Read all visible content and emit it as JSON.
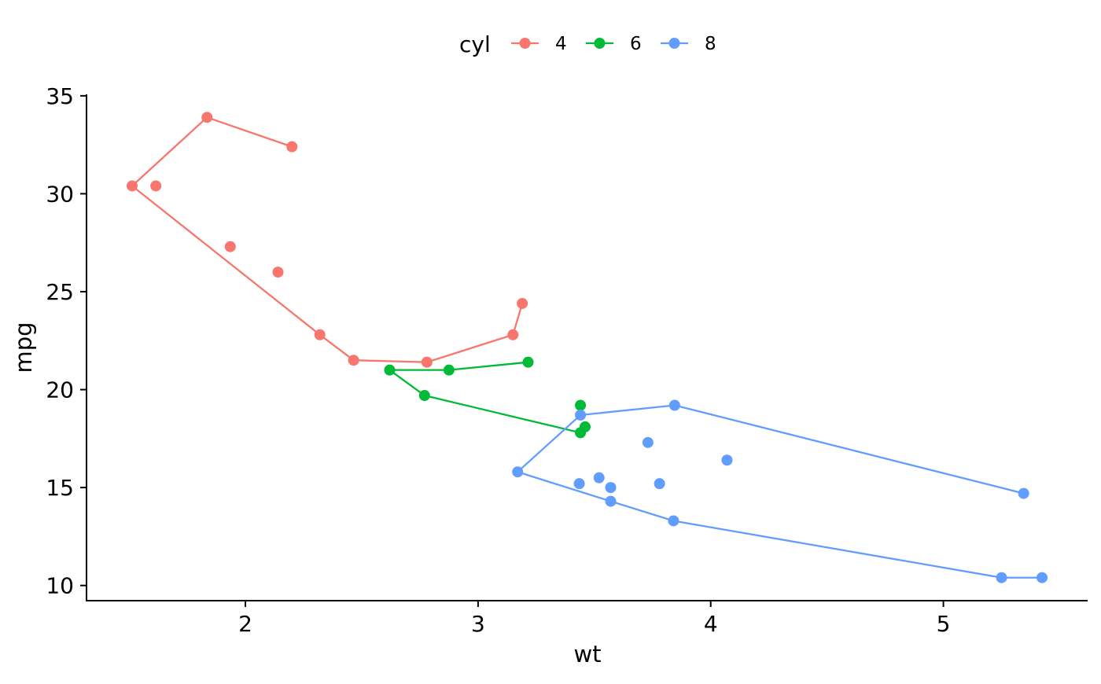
{
  "chart_data": {
    "type": "scatter",
    "title": "",
    "xlabel": "wt",
    "ylabel": "mpg",
    "xlim": [
      1.317,
      5.62
    ],
    "ylim": [
      9.225,
      35.075
    ],
    "xticks": [
      2,
      3,
      4,
      5
    ],
    "yticks": [
      10,
      15,
      20,
      25,
      30,
      35
    ],
    "grid": false,
    "legend": {
      "title": "cyl",
      "position": "top"
    },
    "series": [
      {
        "name": "4",
        "color": "#F8766D",
        "points": [
          [
            2.32,
            22.8
          ],
          [
            3.19,
            24.4
          ],
          [
            3.15,
            22.8
          ],
          [
            2.2,
            32.4
          ],
          [
            1.615,
            30.4
          ],
          [
            1.835,
            33.9
          ],
          [
            2.465,
            21.5
          ],
          [
            1.935,
            27.3
          ],
          [
            2.14,
            26.0
          ],
          [
            1.513,
            30.4
          ],
          [
            2.78,
            21.4
          ]
        ],
        "line": [
          [
            2.2,
            32.4
          ],
          [
            1.835,
            33.9
          ],
          [
            1.513,
            30.4
          ],
          [
            2.32,
            22.8
          ],
          [
            2.465,
            21.5
          ],
          [
            2.78,
            21.4
          ],
          [
            3.15,
            22.8
          ],
          [
            3.19,
            24.4
          ]
        ]
      },
      {
        "name": "6",
        "color": "#00BA38",
        "points": [
          [
            2.62,
            21.0
          ],
          [
            2.875,
            21.0
          ],
          [
            3.215,
            21.4
          ],
          [
            3.46,
            18.1
          ],
          [
            3.44,
            19.2
          ],
          [
            3.44,
            17.8
          ],
          [
            2.77,
            19.7
          ]
        ],
        "line": [
          [
            3.215,
            21.4
          ],
          [
            2.875,
            21.0
          ],
          [
            2.62,
            21.0
          ],
          [
            2.77,
            19.7
          ],
          [
            3.44,
            17.8
          ],
          [
            3.46,
            18.1
          ]
        ]
      },
      {
        "name": "8",
        "color": "#619CFF",
        "points": [
          [
            3.44,
            18.7
          ],
          [
            3.57,
            14.3
          ],
          [
            4.07,
            16.4
          ],
          [
            3.73,
            17.3
          ],
          [
            3.78,
            15.2
          ],
          [
            5.25,
            10.4
          ],
          [
            5.424,
            10.4
          ],
          [
            5.345,
            14.7
          ],
          [
            3.52,
            15.5
          ],
          [
            3.435,
            15.2
          ],
          [
            3.84,
            13.3
          ],
          [
            3.845,
            19.2
          ],
          [
            3.17,
            15.8
          ],
          [
            3.57,
            15.0
          ]
        ],
        "line": [
          [
            5.345,
            14.7
          ],
          [
            3.845,
            19.2
          ],
          [
            3.44,
            18.7
          ],
          [
            3.17,
            15.8
          ],
          [
            3.57,
            14.3
          ],
          [
            3.84,
            13.3
          ],
          [
            5.25,
            10.4
          ],
          [
            5.424,
            10.4
          ]
        ]
      }
    ]
  }
}
